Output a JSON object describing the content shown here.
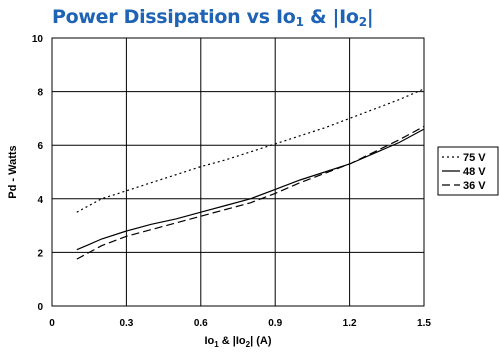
{
  "chart_data": {
    "type": "line",
    "title": {
      "main": "Power Dissipation vs Io",
      "sub1": "1",
      "mid": " & |Io",
      "sub2": "2",
      "end": "|"
    },
    "xlabel": {
      "main": "Io",
      "sub1": "1",
      "rest": " & |Io",
      "sub2": "2",
      "end": "|  (A)"
    },
    "ylabel": "Pd - Watts",
    "xlim": [
      0,
      1.5
    ],
    "ylim": [
      0,
      10
    ],
    "xticks": [
      "0",
      "0.3",
      "0.6",
      "0.9",
      "1.2",
      "1.5"
    ],
    "yticks": [
      "0",
      "2",
      "4",
      "6",
      "8",
      "10"
    ],
    "grid": true,
    "legend_position": "right",
    "series": [
      {
        "name": "75 V",
        "style": "dotted",
        "color": "#000000",
        "x": [
          0.1,
          0.2,
          0.3,
          0.4,
          0.5,
          0.6,
          0.7,
          0.8,
          0.9,
          1.0,
          1.1,
          1.2,
          1.3,
          1.4,
          1.5
        ],
        "y": [
          3.5,
          4.0,
          4.3,
          4.6,
          4.9,
          5.2,
          5.45,
          5.75,
          6.05,
          6.35,
          6.65,
          7.0,
          7.35,
          7.7,
          8.1
        ]
      },
      {
        "name": "48 V",
        "style": "solid",
        "color": "#000000",
        "x": [
          0.1,
          0.15,
          0.2,
          0.3,
          0.4,
          0.5,
          0.6,
          0.7,
          0.8,
          0.9,
          1.0,
          1.1,
          1.2,
          1.3,
          1.4,
          1.5
        ],
        "y": [
          2.1,
          2.3,
          2.5,
          2.8,
          3.05,
          3.25,
          3.5,
          3.75,
          4.0,
          4.35,
          4.7,
          5.0,
          5.3,
          5.7,
          6.1,
          6.6
        ]
      },
      {
        "name": "36 V",
        "style": "dashed",
        "color": "#000000",
        "x": [
          0.1,
          0.15,
          0.2,
          0.3,
          0.4,
          0.5,
          0.6,
          0.7,
          0.8,
          0.9,
          1.0,
          1.1,
          1.2,
          1.3,
          1.4,
          1.5
        ],
        "y": [
          1.75,
          2.0,
          2.25,
          2.6,
          2.85,
          3.1,
          3.35,
          3.6,
          3.85,
          4.2,
          4.6,
          4.95,
          5.3,
          5.75,
          6.2,
          6.7
        ]
      }
    ]
  }
}
